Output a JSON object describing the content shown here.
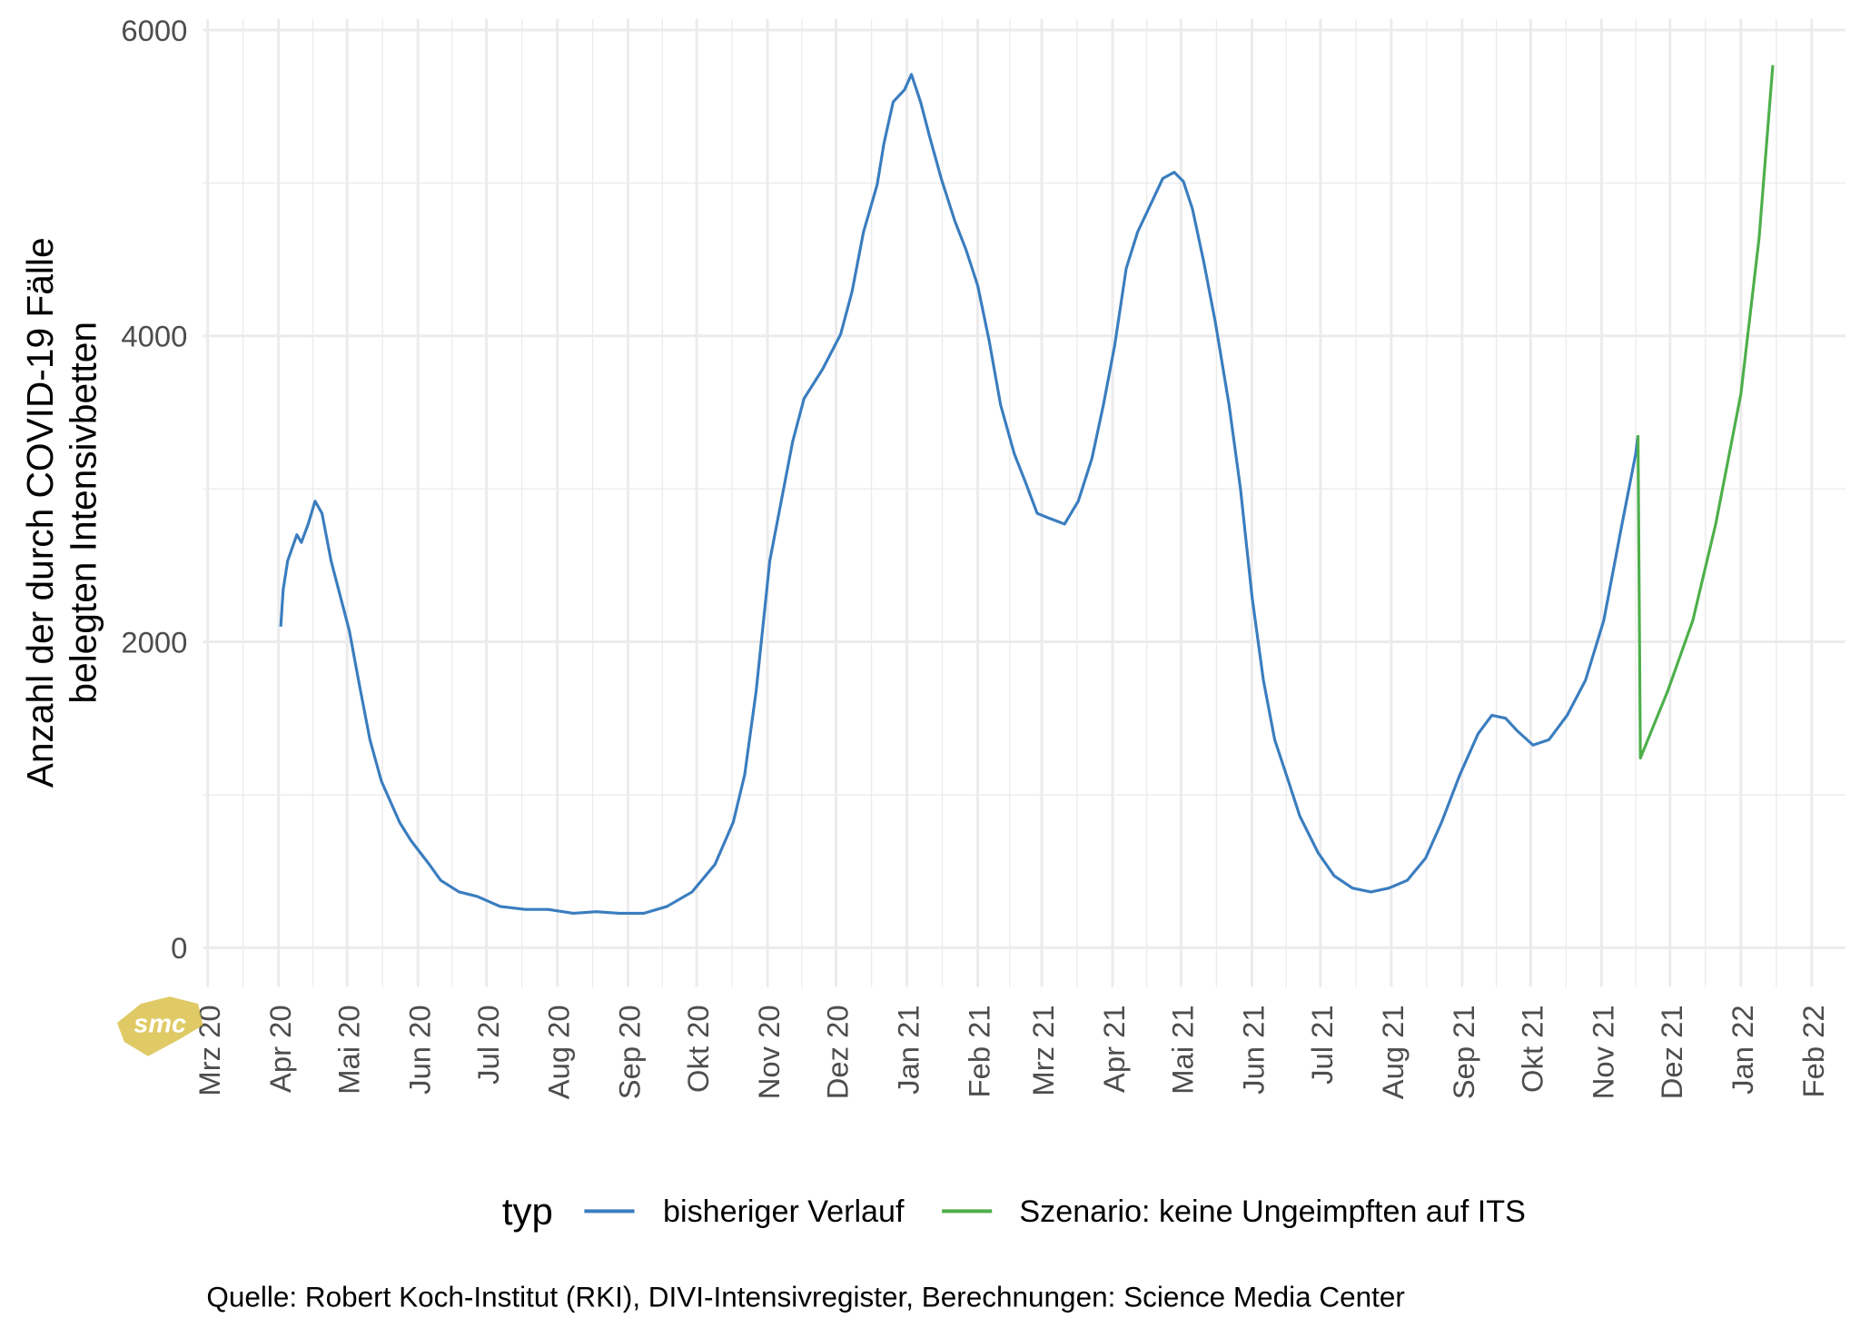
{
  "chart_data": {
    "type": "line",
    "title": "",
    "xlabel": "",
    "ylabel_lines": [
      "Anzahl der durch COVID-19 Fälle",
      "belegten Intensivbetten"
    ],
    "x_unit": "days since 2020-03-01",
    "xlim": [
      0,
      712
    ],
    "ylim": [
      -200,
      6000
    ],
    "yticks": [
      0,
      2000,
      4000,
      6000
    ],
    "ytick_labels": [
      "0",
      "2000",
      "4000",
      "6000"
    ],
    "xticks": [
      0,
      31,
      61,
      92,
      122,
      153,
      184,
      214,
      245,
      275,
      306,
      337,
      365,
      396,
      426,
      457,
      487,
      518,
      549,
      579,
      610,
      640,
      671,
      702
    ],
    "xtick_labels": [
      "Mrz 20",
      "Apr 20",
      "Mai 20",
      "Jun 20",
      "Jul 20",
      "Aug 20",
      "Sep 20",
      "Okt 20",
      "Nov 20",
      "Dez 20",
      "Jan 21",
      "Feb 21",
      "Mrz 21",
      "Apr 21",
      "Mai 21",
      "Jun 21",
      "Jul 21",
      "Aug 21",
      "Sep 21",
      "Okt 21",
      "Nov 21",
      "Dez 21",
      "Jan 22",
      "Feb 22"
    ],
    "grid": true,
    "legend": {
      "title": "typ",
      "position": "bottom"
    },
    "series": [
      {
        "name": "bisheriger Verlauf",
        "color": "#3a7dbf",
        "x": [
          32,
          33,
          35,
          39,
          41,
          44,
          47,
          50,
          54,
          58,
          62,
          66,
          71,
          76,
          84,
          89,
          97,
          102,
          110,
          118,
          128,
          139,
          149,
          160,
          170,
          180,
          191,
          201,
          212,
          222,
          230,
          235,
          240,
          246,
          251,
          256,
          261,
          269,
          277,
          282,
          287,
          293,
          296,
          300,
          305,
          308,
          312,
          316,
          321,
          327,
          332,
          337,
          342,
          347,
          353,
          358,
          363,
          368,
          375,
          381,
          387,
          392,
          397,
          402,
          407,
          413,
          418,
          423,
          427,
          431,
          436,
          441,
          447,
          452,
          457,
          462,
          467,
          473,
          478,
          486,
          493,
          501,
          509,
          517,
          525,
          533,
          540,
          548,
          556,
          562,
          568,
          573,
          580,
          587,
          595,
          603,
          611,
          619,
          625,
          626
        ],
        "y": [
          2100,
          2340,
          2530,
          2700,
          2650,
          2770,
          2920,
          2840,
          2530,
          2300,
          2070,
          1750,
          1360,
          1090,
          820,
          700,
          545,
          440,
          365,
          335,
          270,
          250,
          250,
          225,
          235,
          225,
          225,
          270,
          365,
          545,
          820,
          1130,
          1675,
          2530,
          2920,
          3310,
          3590,
          3780,
          4010,
          4290,
          4680,
          4990,
          5260,
          5530,
          5610,
          5710,
          5530,
          5300,
          5030,
          4750,
          4560,
          4330,
          3970,
          3550,
          3230,
          3040,
          2840,
          2810,
          2770,
          2920,
          3200,
          3550,
          3940,
          4440,
          4680,
          4870,
          5030,
          5070,
          5010,
          4830,
          4480,
          4090,
          3550,
          3000,
          2300,
          1750,
          1360,
          1090,
          860,
          620,
          470,
          390,
          365,
          390,
          440,
          585,
          820,
          1130,
          1400,
          1520,
          1500,
          1420,
          1325,
          1360,
          1520,
          1750,
          2140,
          2770,
          3230,
          3350
        ]
      },
      {
        "name": "Szenario: keine Ungeimpften auf ITS",
        "color": "#4daf4a",
        "x": [
          626,
          627,
          639,
          650,
          660,
          671,
          679,
          685
        ],
        "y": [
          3350,
          1240,
          1680,
          2140,
          2770,
          3620,
          4640,
          5770
        ]
      }
    ]
  },
  "caption": "Quelle: Robert Koch-Institut (RKI), DIVI-Intensivregister, Berechnungen: Science Media Center",
  "logo": {
    "text": "smc",
    "color": "#d9c14a"
  }
}
